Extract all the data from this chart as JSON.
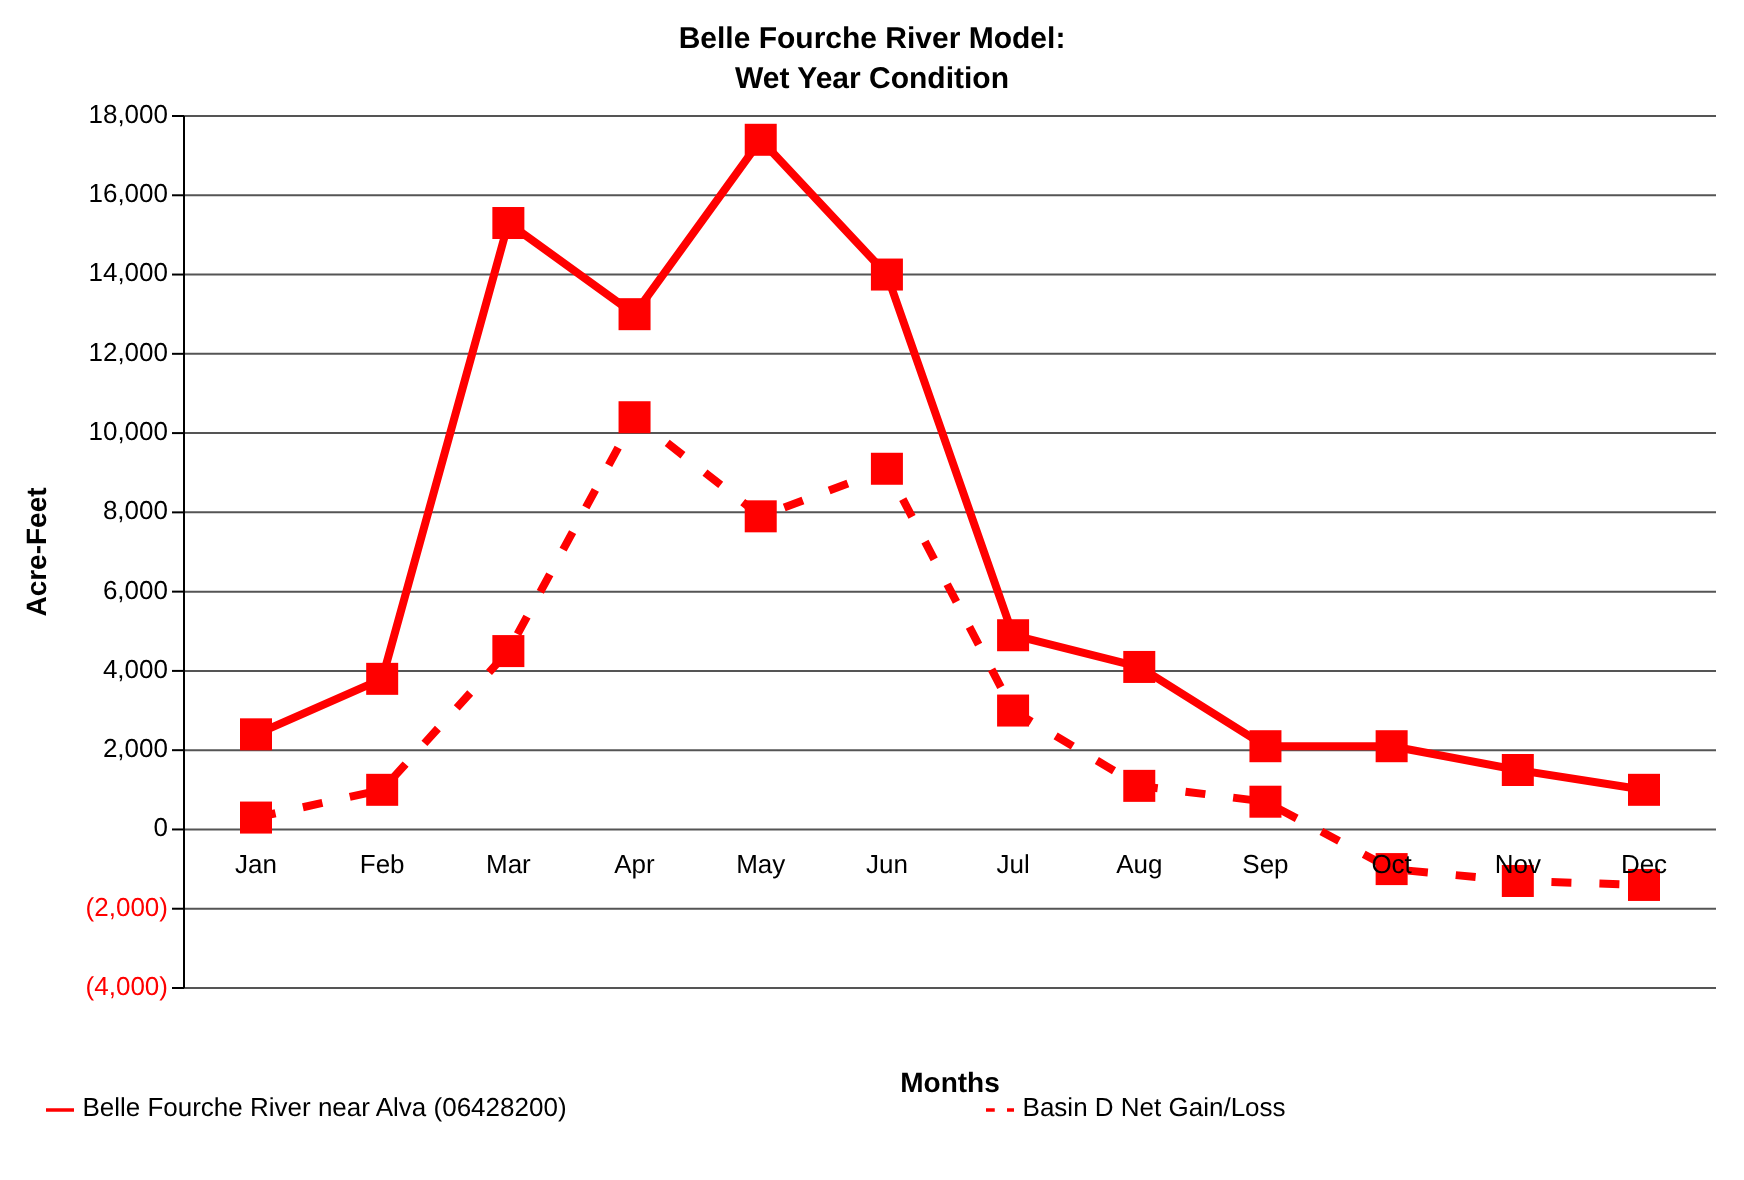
{
  "chart_data": {
    "type": "line",
    "title": "Belle Fourche River Model:",
    "subtitle": "Wet Year Condition",
    "xlabel": "Months",
    "ylabel": "Acre-Feet",
    "categories": [
      "Jan",
      "Feb",
      "Mar",
      "Apr",
      "May",
      "Jun",
      "Jul",
      "Aug",
      "Sep",
      "Oct",
      "Nov",
      "Dec"
    ],
    "series": [
      {
        "name": "Belle Fourche River near Alva (06428200)",
        "color": "#ff0000",
        "line_style": "solid",
        "values": [
          2400,
          3800,
          15300,
          13000,
          17400,
          14000,
          4900,
          4100,
          2100,
          2100,
          1500,
          1000
        ]
      },
      {
        "name": "Basin D Net Gain/Loss",
        "color": "#ff0000",
        "line_style": "dashed",
        "values": [
          300,
          1000,
          4500,
          10400,
          7900,
          9100,
          3000,
          1100,
          700,
          -1000,
          -1300,
          -1400
        ]
      }
    ],
    "ylim": [
      -4000,
      18000
    ],
    "yticks": [
      {
        "value": -4000,
        "label": "(4,000)"
      },
      {
        "value": -2000,
        "label": "(2,000)"
      },
      0,
      "2,000",
      "4,000",
      "6,000",
      "8,000",
      "10,000",
      "12,000",
      "14,000",
      "16,000",
      "18,000"
    ],
    "grid": "y",
    "legend": "bottom",
    "marker": "square"
  }
}
